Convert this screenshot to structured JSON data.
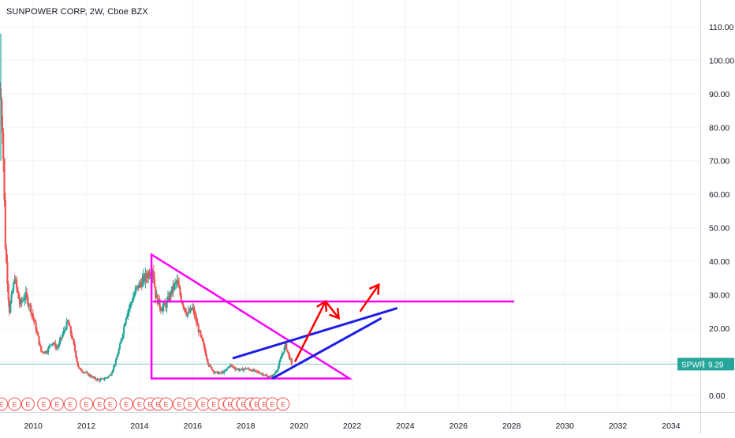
{
  "legend": {
    "symbol_title": "SUNPOWER CORP, 2W, Cboe BZX"
  },
  "price_label": {
    "ticker": "SPWR",
    "value": "9.29",
    "color": "#26a69a"
  },
  "colors": {
    "up": "#26a69a",
    "down": "#ef5350",
    "magenta": "#ff00ff",
    "blue": "#1e1ee6",
    "red": "#ff0000",
    "grid": "#f0f3fa",
    "axis_text": "#131722",
    "earnings_marker": "#ef5350"
  },
  "earnings_marker_label": "E",
  "chart_data": {
    "type": "candlestick",
    "title": "SUNPOWER CORP, 2W, Cboe BZX",
    "xlabel": "",
    "ylabel": "",
    "x_range": [
      2008.75,
      2035.1
    ],
    "ylim": [
      -5,
      118
    ],
    "x_ticks": [
      2010,
      2012,
      2014,
      2016,
      2018,
      2020,
      2022,
      2024,
      2026,
      2028,
      2030,
      2032,
      2034
    ],
    "x_tick_labels": [
      "2010",
      "2012",
      "2014",
      "2016",
      "2018",
      "2020",
      "2022",
      "2024",
      "2026",
      "2028",
      "2030",
      "2032",
      "2034"
    ],
    "y_ticks": [
      0,
      10,
      20,
      30,
      40,
      50,
      60,
      70,
      80,
      90,
      100,
      110
    ],
    "y_tick_labels": [
      "0.00",
      "10.00",
      "20.00",
      "30.00",
      "40.00",
      "50.00",
      "60.00",
      "70.00",
      "80.00",
      "90.00",
      "100.00",
      "110.00"
    ],
    "grid": true,
    "last_price": 9.29,
    "price_path": [
      [
        2008.75,
        90
      ],
      [
        2008.85,
        80
      ],
      [
        2008.95,
        45
      ],
      [
        2009.1,
        25
      ],
      [
        2009.3,
        35
      ],
      [
        2009.5,
        27
      ],
      [
        2009.7,
        30
      ],
      [
        2009.9,
        26
      ],
      [
        2010.1,
        20
      ],
      [
        2010.3,
        13
      ],
      [
        2010.5,
        13
      ],
      [
        2010.7,
        16
      ],
      [
        2010.9,
        14
      ],
      [
        2011.1,
        18
      ],
      [
        2011.3,
        22
      ],
      [
        2011.5,
        16
      ],
      [
        2011.7,
        8
      ],
      [
        2011.9,
        7
      ],
      [
        2012.1,
        6
      ],
      [
        2012.3,
        5
      ],
      [
        2012.5,
        4.5
      ],
      [
        2012.7,
        5
      ],
      [
        2012.9,
        6
      ],
      [
        2013.1,
        10
      ],
      [
        2013.3,
        16
      ],
      [
        2013.5,
        24
      ],
      [
        2013.7,
        28
      ],
      [
        2013.9,
        32
      ],
      [
        2014.1,
        34
      ],
      [
        2014.3,
        36
      ],
      [
        2014.5,
        38
      ],
      [
        2014.6,
        30
      ],
      [
        2014.8,
        26
      ],
      [
        2015.0,
        27
      ],
      [
        2015.2,
        31
      ],
      [
        2015.4,
        34
      ],
      [
        2015.6,
        28
      ],
      [
        2015.8,
        24
      ],
      [
        2016.0,
        26
      ],
      [
        2016.2,
        20
      ],
      [
        2016.4,
        15
      ],
      [
        2016.6,
        9
      ],
      [
        2016.8,
        7
      ],
      [
        2017.0,
        6.5
      ],
      [
        2017.2,
        7
      ],
      [
        2017.4,
        9
      ],
      [
        2017.6,
        8
      ],
      [
        2017.8,
        7.5
      ],
      [
        2018.0,
        8
      ],
      [
        2018.2,
        7.5
      ],
      [
        2018.4,
        7
      ],
      [
        2018.6,
        6.5
      ],
      [
        2018.8,
        5.5
      ],
      [
        2019.0,
        5.5
      ],
      [
        2019.2,
        8
      ],
      [
        2019.35,
        12
      ],
      [
        2019.5,
        15
      ],
      [
        2019.6,
        12
      ],
      [
        2019.75,
        9.29
      ]
    ],
    "drawings": {
      "descending_triangle": [
        [
          2014.45,
          42
        ],
        [
          2021.9,
          5
        ],
        [
          2014.45,
          5
        ]
      ],
      "triangle_upper_horizontal": [
        [
          2014.5,
          28
        ],
        [
          2028.1,
          28
        ]
      ],
      "blue_trendline_upper": [
        [
          2017.5,
          11
        ],
        [
          2023.7,
          26
        ]
      ],
      "blue_trendline_lower": [
        [
          2019.0,
          5
        ],
        [
          2023.1,
          23
        ]
      ],
      "red_arrow_path": [
        [
          2019.85,
          10
        ],
        [
          2020.35,
          20
        ],
        [
          2021.0,
          28
        ]
      ],
      "red_arrow_2": [
        [
          2021.0,
          28
        ],
        [
          2021.5,
          23
        ],
        [
          2022.3,
          25
        ]
      ],
      "red_arrow_3": [
        [
          2022.3,
          25
        ],
        [
          2023.0,
          33
        ]
      ]
    },
    "earnings_events_count": 27,
    "earnings_x": [
      2008.8,
      2009.3,
      2009.8,
      2010.4,
      2010.9,
      2011.4,
      2012.0,
      2012.5,
      2012.9,
      2013.5,
      2014.0,
      2014.4,
      2014.7,
      2015.0,
      2015.5,
      2015.9,
      2016.4,
      2016.8,
      2017.2,
      2017.4,
      2017.7,
      2017.9,
      2018.2,
      2018.4,
      2018.7,
      2019.0,
      2019.4
    ]
  }
}
